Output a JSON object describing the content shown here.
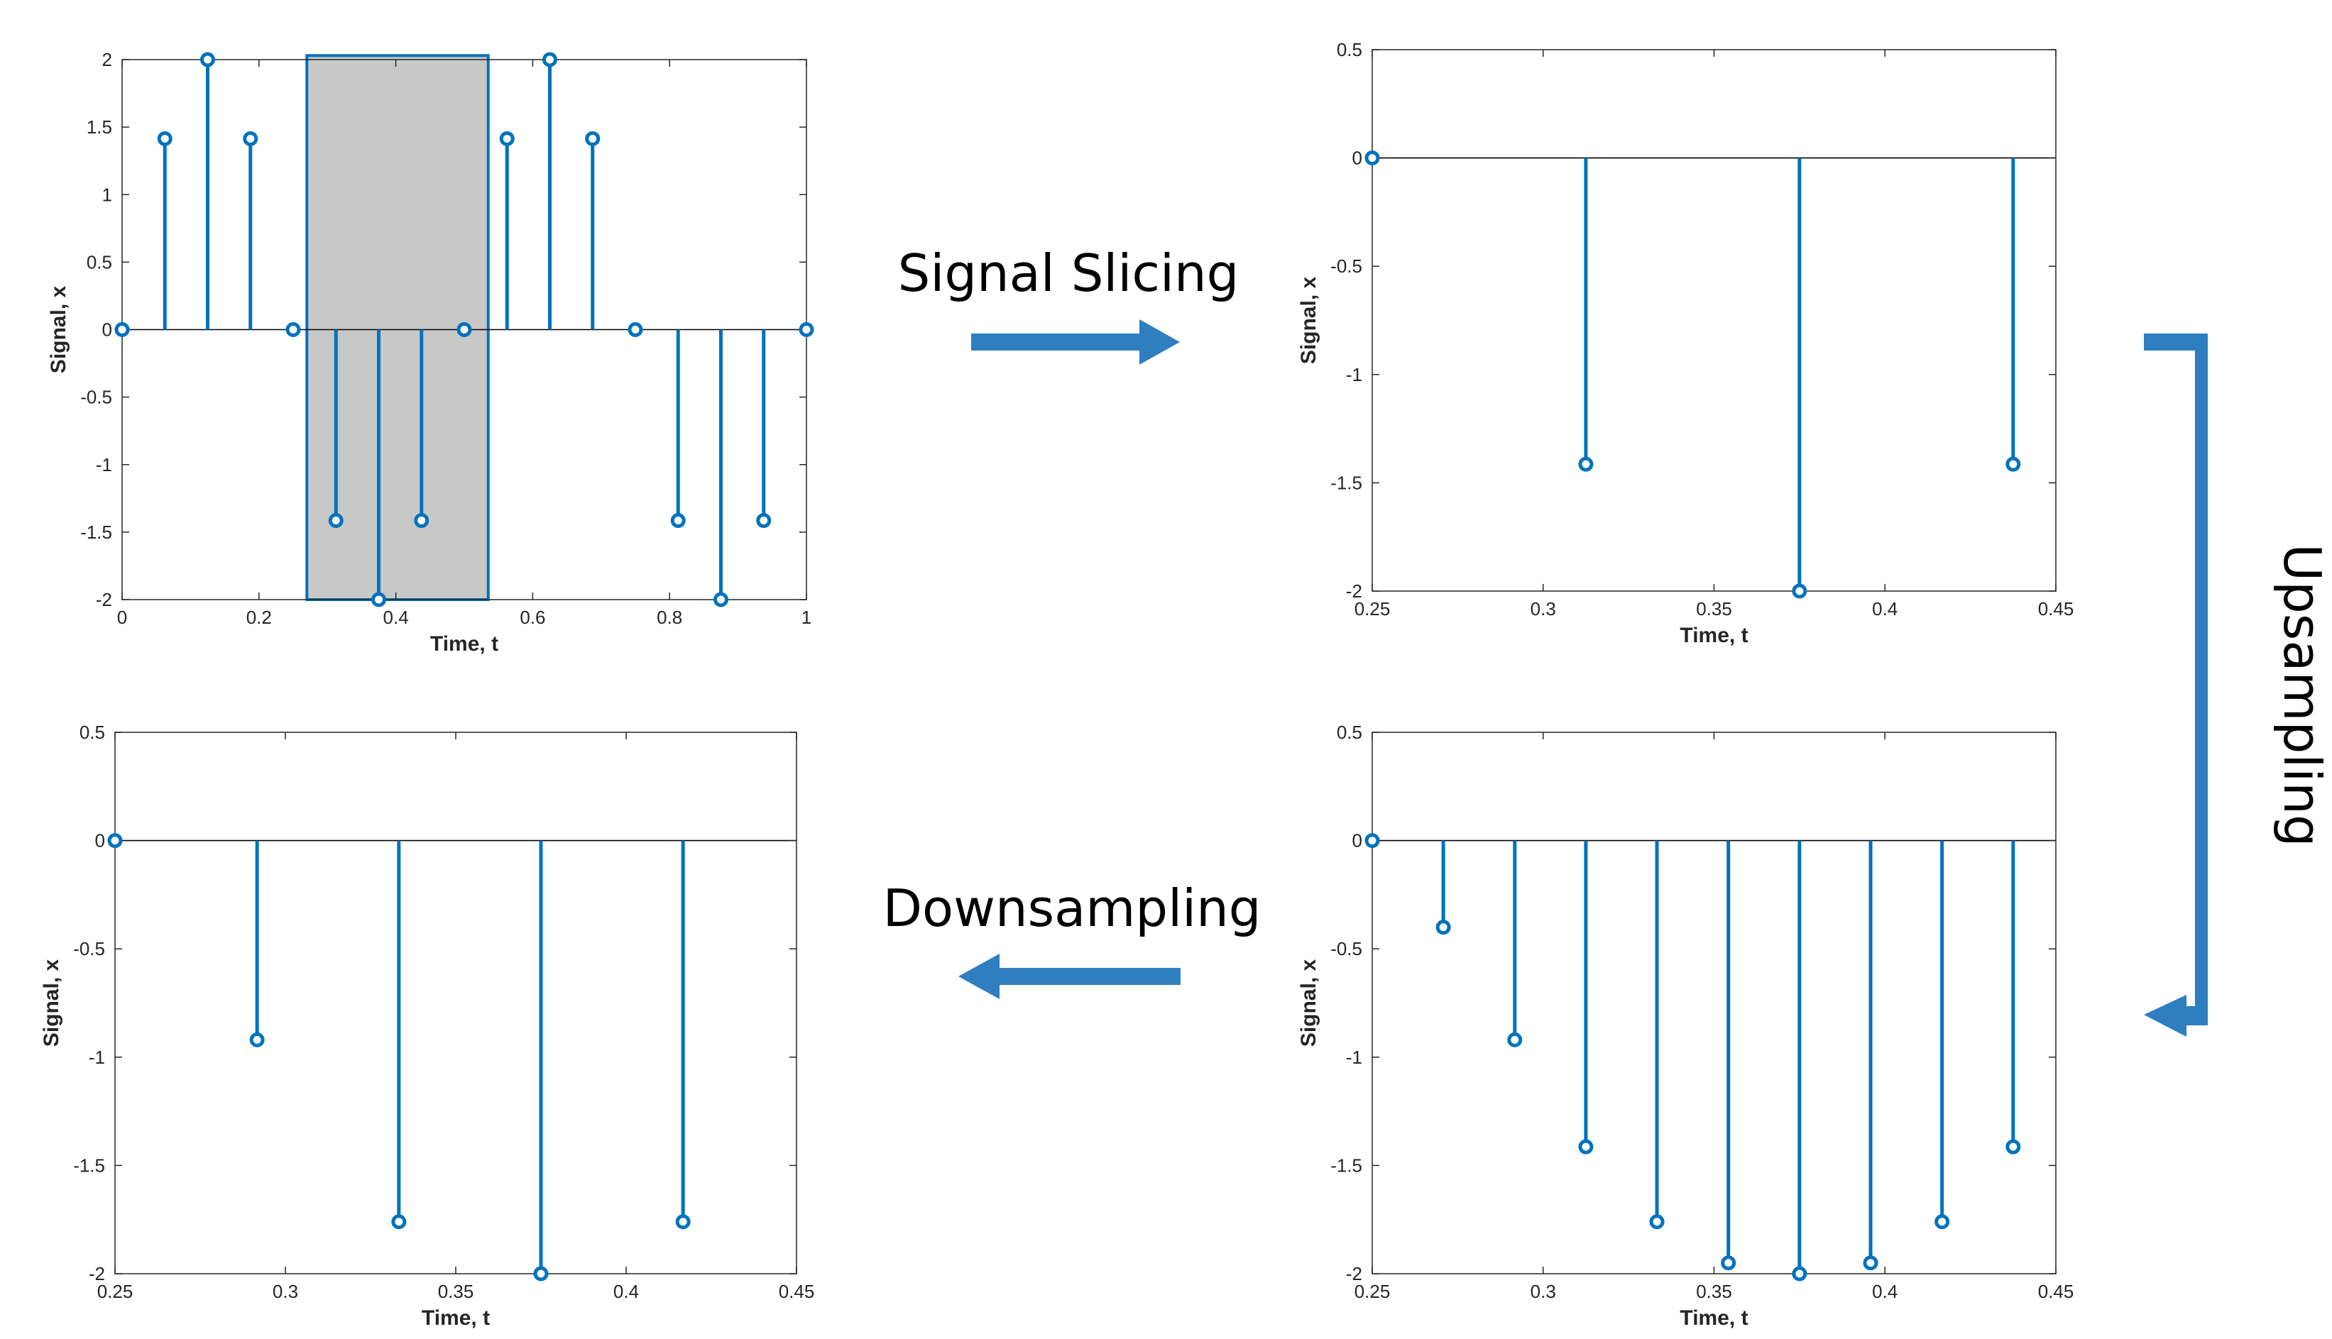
{
  "colors": {
    "stem": "#0072BD",
    "arrow": "#2E7EC0",
    "highlight": "#C8C8C8",
    "axis": "#262626",
    "baseline": "#000000"
  },
  "flow": {
    "slicing_label": "Signal Slicing",
    "upsampling_label": "Upsampling",
    "downsampling_label": "Downsampling"
  },
  "chart_data": [
    {
      "id": "original",
      "type": "stem",
      "xlabel": "Time, t",
      "ylabel": "Signal, x",
      "xlim": [
        0,
        1
      ],
      "ylim": [
        -2,
        2
      ],
      "xticks": [
        0,
        0.2,
        0.4,
        0.6,
        0.8,
        1
      ],
      "xtick_labels": [
        "0",
        "0.2",
        "0.4",
        "0.6",
        "0.8",
        "1"
      ],
      "yticks": [
        2,
        1.5,
        1,
        0.5,
        0,
        -0.5,
        -1,
        -1.5,
        -2
      ],
      "ytick_labels": [
        "2",
        "1.5",
        "1",
        "0.5",
        "0",
        "-0.5",
        "-1",
        "-1.5",
        "-2"
      ],
      "x": [
        0,
        0.0625,
        0.125,
        0.1875,
        0.25,
        0.3125,
        0.375,
        0.4375,
        0.5,
        0.5625,
        0.625,
        0.6875,
        0.75,
        0.8125,
        0.875,
        0.9375,
        1
      ],
      "y": [
        0,
        1.414,
        2,
        1.414,
        0,
        -1.414,
        -2,
        -1.414,
        0,
        1.414,
        2,
        1.414,
        0,
        -1.414,
        -2,
        -1.414,
        0
      ],
      "highlight": {
        "x0": 0.27,
        "x1": 0.535,
        "y0": -2,
        "y1": 2.03
      }
    },
    {
      "id": "sliced",
      "type": "stem",
      "xlabel": "Time, t",
      "ylabel": "Signal, x",
      "xlim": [
        0.25,
        0.45
      ],
      "ylim": [
        -2,
        0.5
      ],
      "xticks": [
        0.25,
        0.3,
        0.35,
        0.4,
        0.45
      ],
      "xtick_labels": [
        "0.25",
        "0.3",
        "0.35",
        "0.4",
        "0.45"
      ],
      "yticks": [
        0.5,
        0,
        -0.5,
        -1,
        -1.5,
        -2
      ],
      "ytick_labels": [
        "0.5",
        "0",
        "-0.5",
        "-1",
        "-1.5",
        "-2"
      ],
      "x": [
        0.25,
        0.3125,
        0.375,
        0.4375
      ],
      "y": [
        0,
        -1.414,
        -2,
        -1.414
      ]
    },
    {
      "id": "upsampled",
      "type": "stem",
      "xlabel": "Time, t",
      "ylabel": "Signal, x",
      "xlim": [
        0.25,
        0.45
      ],
      "ylim": [
        -2,
        0.5
      ],
      "xticks": [
        0.25,
        0.3,
        0.35,
        0.4,
        0.45
      ],
      "xtick_labels": [
        "0.25",
        "0.3",
        "0.35",
        "0.4",
        "0.45"
      ],
      "yticks": [
        0.5,
        0,
        -0.5,
        -1,
        -1.5,
        -2
      ],
      "ytick_labels": [
        "0.5",
        "0",
        "-0.5",
        "-1",
        "-1.5",
        "-2"
      ],
      "x": [
        0.25,
        0.2708,
        0.2917,
        0.3125,
        0.3333,
        0.3542,
        0.375,
        0.3958,
        0.4167,
        0.4375
      ],
      "y": [
        0,
        -0.4,
        -0.92,
        -1.414,
        -1.76,
        -1.95,
        -2,
        -1.95,
        -1.76,
        -1.414
      ]
    },
    {
      "id": "downsampled",
      "type": "stem",
      "xlabel": "Time, t",
      "ylabel": "Signal, x",
      "xlim": [
        0.25,
        0.45
      ],
      "ylim": [
        -2,
        0.5
      ],
      "xticks": [
        0.25,
        0.3,
        0.35,
        0.4,
        0.45
      ],
      "xtick_labels": [
        "0.25",
        "0.3",
        "0.35",
        "0.4",
        "0.45"
      ],
      "yticks": [
        0.5,
        0,
        -0.5,
        -1,
        -1.5,
        -2
      ],
      "ytick_labels": [
        "0.5",
        "0",
        "-0.5",
        "-1",
        "-1.5",
        "-2"
      ],
      "x": [
        0.25,
        0.2917,
        0.3333,
        0.375,
        0.4167
      ],
      "y": [
        0,
        -0.92,
        -1.76,
        -2,
        -1.76
      ]
    }
  ]
}
